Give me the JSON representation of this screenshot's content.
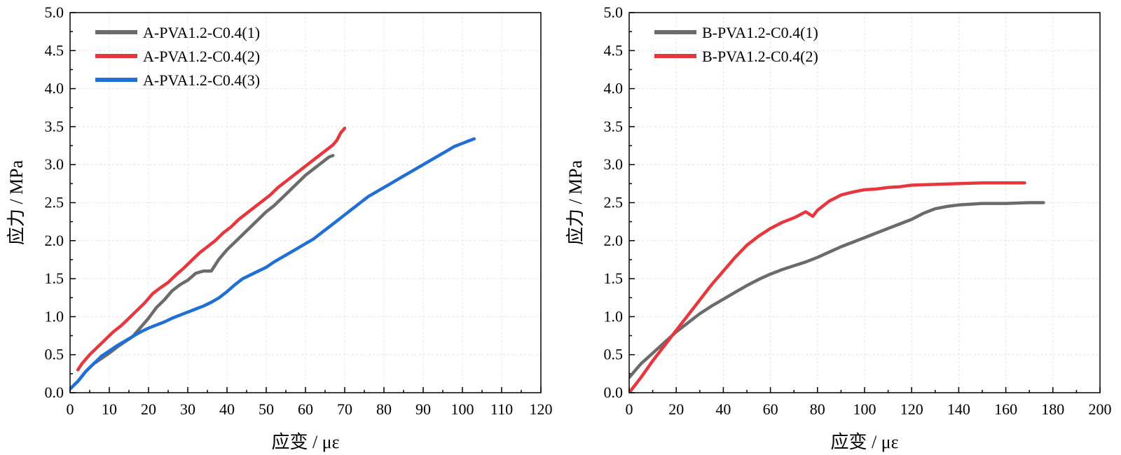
{
  "chart_data": [
    {
      "type": "line",
      "id": "A",
      "xlabel": "应变 / με",
      "ylabel": "应力 / MPa",
      "xlim": [
        0,
        120
      ],
      "ylim": [
        0,
        5.0
      ],
      "xticks": [
        0,
        10,
        20,
        30,
        40,
        50,
        60,
        70,
        80,
        90,
        100,
        110,
        120
      ],
      "yticks": [
        "0.0",
        "0.5",
        "1.0",
        "1.5",
        "2.0",
        "2.5",
        "3.0",
        "3.5",
        "4.0",
        "4.5",
        "5.0"
      ],
      "legend_position": "top-left",
      "series": [
        {
          "name": "A-PVA1.2-C0.4(1)",
          "color": "#6b6b6b",
          "points": [
            [
              0,
              0.05
            ],
            [
              2,
              0.15
            ],
            [
              4,
              0.28
            ],
            [
              6,
              0.38
            ],
            [
              8,
              0.45
            ],
            [
              10,
              0.52
            ],
            [
              12,
              0.6
            ],
            [
              14,
              0.67
            ],
            [
              16,
              0.74
            ],
            [
              18,
              0.86
            ],
            [
              20,
              0.98
            ],
            [
              22,
              1.12
            ],
            [
              24,
              1.22
            ],
            [
              26,
              1.34
            ],
            [
              28,
              1.42
            ],
            [
              30,
              1.48
            ],
            [
              32,
              1.57
            ],
            [
              34,
              1.6
            ],
            [
              36,
              1.6
            ],
            [
              38,
              1.76
            ],
            [
              40,
              1.88
            ],
            [
              42,
              1.98
            ],
            [
              44,
              2.08
            ],
            [
              46,
              2.18
            ],
            [
              48,
              2.28
            ],
            [
              50,
              2.38
            ],
            [
              52,
              2.46
            ],
            [
              54,
              2.56
            ],
            [
              56,
              2.66
            ],
            [
              58,
              2.76
            ],
            [
              60,
              2.86
            ],
            [
              62,
              2.94
            ],
            [
              64,
              3.02
            ],
            [
              66,
              3.1
            ],
            [
              67,
              3.12
            ]
          ]
        },
        {
          "name": "A-PVA1.2-C0.4(2)",
          "color": "#e8373c",
          "points": [
            [
              2,
              0.3
            ],
            [
              3,
              0.38
            ],
            [
              5,
              0.5
            ],
            [
              7,
              0.6
            ],
            [
              9,
              0.7
            ],
            [
              11,
              0.8
            ],
            [
              13,
              0.88
            ],
            [
              15,
              0.98
            ],
            [
              17,
              1.08
            ],
            [
              19,
              1.18
            ],
            [
              21,
              1.3
            ],
            [
              23,
              1.38
            ],
            [
              25,
              1.45
            ],
            [
              27,
              1.55
            ],
            [
              29,
              1.64
            ],
            [
              31,
              1.74
            ],
            [
              33,
              1.84
            ],
            [
              35,
              1.92
            ],
            [
              37,
              2.0
            ],
            [
              39,
              2.1
            ],
            [
              41,
              2.18
            ],
            [
              43,
              2.28
            ],
            [
              45,
              2.36
            ],
            [
              47,
              2.44
            ],
            [
              49,
              2.52
            ],
            [
              51,
              2.6
            ],
            [
              53,
              2.7
            ],
            [
              55,
              2.78
            ],
            [
              57,
              2.86
            ],
            [
              59,
              2.94
            ],
            [
              61,
              3.02
            ],
            [
              63,
              3.1
            ],
            [
              65,
              3.18
            ],
            [
              67,
              3.26
            ],
            [
              68,
              3.32
            ],
            [
              69,
              3.42
            ],
            [
              70,
              3.48
            ]
          ]
        },
        {
          "name": "A-PVA1.2-C0.4(3)",
          "color": "#1f6fd6",
          "points": [
            [
              0,
              0.05
            ],
            [
              2,
              0.15
            ],
            [
              4,
              0.28
            ],
            [
              6,
              0.38
            ],
            [
              8,
              0.48
            ],
            [
              10,
              0.55
            ],
            [
              12,
              0.62
            ],
            [
              14,
              0.68
            ],
            [
              16,
              0.74
            ],
            [
              18,
              0.8
            ],
            [
              20,
              0.85
            ],
            [
              22,
              0.89
            ],
            [
              24,
              0.93
            ],
            [
              26,
              0.98
            ],
            [
              28,
              1.02
            ],
            [
              30,
              1.06
            ],
            [
              32,
              1.1
            ],
            [
              34,
              1.14
            ],
            [
              36,
              1.19
            ],
            [
              38,
              1.25
            ],
            [
              40,
              1.33
            ],
            [
              42,
              1.42
            ],
            [
              44,
              1.5
            ],
            [
              46,
              1.55
            ],
            [
              48,
              1.6
            ],
            [
              50,
              1.65
            ],
            [
              52,
              1.72
            ],
            [
              54,
              1.78
            ],
            [
              56,
              1.84
            ],
            [
              58,
              1.9
            ],
            [
              60,
              1.96
            ],
            [
              62,
              2.02
            ],
            [
              64,
              2.1
            ],
            [
              66,
              2.18
            ],
            [
              68,
              2.26
            ],
            [
              70,
              2.34
            ],
            [
              72,
              2.42
            ],
            [
              74,
              2.5
            ],
            [
              76,
              2.58
            ],
            [
              78,
              2.64
            ],
            [
              80,
              2.7
            ],
            [
              82,
              2.76
            ],
            [
              84,
              2.82
            ],
            [
              86,
              2.88
            ],
            [
              88,
              2.94
            ],
            [
              90,
              3.0
            ],
            [
              92,
              3.06
            ],
            [
              94,
              3.12
            ],
            [
              96,
              3.18
            ],
            [
              98,
              3.24
            ],
            [
              100,
              3.28
            ],
            [
              102,
              3.32
            ],
            [
              103,
              3.34
            ]
          ]
        }
      ]
    },
    {
      "type": "line",
      "id": "B",
      "xlabel": "应变 / με",
      "ylabel": "应力 / MPa",
      "xlim": [
        0,
        200
      ],
      "ylim": [
        0,
        5.0
      ],
      "xticks": [
        0,
        20,
        40,
        60,
        80,
        100,
        120,
        140,
        160,
        180,
        200
      ],
      "yticks": [
        "0.0",
        "0.5",
        "1.0",
        "1.5",
        "2.0",
        "2.5",
        "3.0",
        "3.5",
        "4.0",
        "4.5",
        "5.0"
      ],
      "legend_position": "top-left",
      "series": [
        {
          "name": "B-PVA1.2-C0.4(1)",
          "color": "#6b6b6b",
          "points": [
            [
              0,
              0.2
            ],
            [
              5,
              0.38
            ],
            [
              10,
              0.52
            ],
            [
              15,
              0.66
            ],
            [
              20,
              0.8
            ],
            [
              25,
              0.92
            ],
            [
              30,
              1.04
            ],
            [
              35,
              1.14
            ],
            [
              40,
              1.23
            ],
            [
              45,
              1.32
            ],
            [
              50,
              1.41
            ],
            [
              55,
              1.49
            ],
            [
              60,
              1.56
            ],
            [
              65,
              1.62
            ],
            [
              70,
              1.67
            ],
            [
              75,
              1.72
            ],
            [
              80,
              1.78
            ],
            [
              85,
              1.85
            ],
            [
              90,
              1.92
            ],
            [
              95,
              1.98
            ],
            [
              100,
              2.04
            ],
            [
              105,
              2.1
            ],
            [
              110,
              2.16
            ],
            [
              115,
              2.22
            ],
            [
              120,
              2.28
            ],
            [
              125,
              2.36
            ],
            [
              130,
              2.42
            ],
            [
              135,
              2.45
            ],
            [
              140,
              2.47
            ],
            [
              145,
              2.48
            ],
            [
              150,
              2.49
            ],
            [
              160,
              2.49
            ],
            [
              170,
              2.5
            ],
            [
              176,
              2.5
            ]
          ]
        },
        {
          "name": "B-PVA1.2-C0.4(2)",
          "color": "#e8373c",
          "points": [
            [
              0,
              0.0
            ],
            [
              5,
              0.2
            ],
            [
              10,
              0.42
            ],
            [
              15,
              0.62
            ],
            [
              20,
              0.82
            ],
            [
              25,
              1.02
            ],
            [
              30,
              1.22
            ],
            [
              35,
              1.42
            ],
            [
              40,
              1.6
            ],
            [
              45,
              1.78
            ],
            [
              50,
              1.94
            ],
            [
              55,
              2.06
            ],
            [
              60,
              2.16
            ],
            [
              65,
              2.24
            ],
            [
              70,
              2.3
            ],
            [
              75,
              2.38
            ],
            [
              78,
              2.32
            ],
            [
              80,
              2.4
            ],
            [
              85,
              2.52
            ],
            [
              90,
              2.6
            ],
            [
              95,
              2.64
            ],
            [
              100,
              2.67
            ],
            [
              105,
              2.68
            ],
            [
              110,
              2.7
            ],
            [
              115,
              2.71
            ],
            [
              120,
              2.73
            ],
            [
              130,
              2.74
            ],
            [
              140,
              2.75
            ],
            [
              150,
              2.76
            ],
            [
              160,
              2.76
            ],
            [
              168,
              2.76
            ]
          ]
        }
      ]
    }
  ]
}
